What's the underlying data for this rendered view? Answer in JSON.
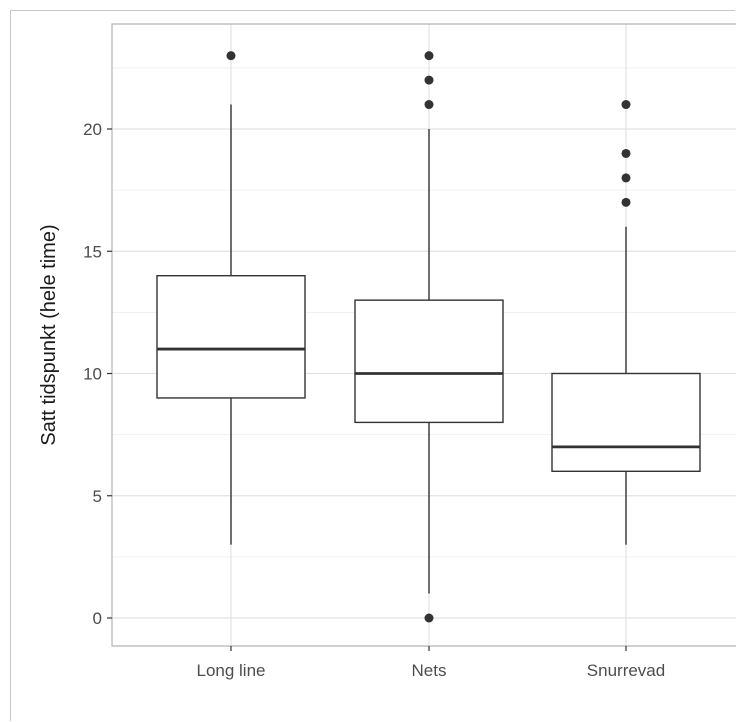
{
  "chart_data": {
    "type": "box",
    "title": "",
    "xlabel": "",
    "ylabel": "Satt tidspunkt (hele time)",
    "ylim": [
      -1,
      24
    ],
    "yticks": [
      0,
      5,
      10,
      15,
      20
    ],
    "grid": true,
    "legend": "none",
    "colors": {
      "box_fill": "#ffffff",
      "box_stroke": "#333333",
      "grid_major": "#e2e2e2",
      "grid_minor": "#f1f1f1",
      "panel_border": "#b3b3b3"
    },
    "categories": [
      "Long line",
      "Nets",
      "Snurrevad"
    ],
    "boxes": [
      {
        "category": "Long line",
        "whisker_low": 3,
        "q1": 9,
        "median": 11,
        "q3": 14,
        "whisker_high": 21,
        "outliers": [
          23
        ]
      },
      {
        "category": "Nets",
        "whisker_low": 1,
        "q1": 8,
        "median": 10,
        "q3": 13,
        "whisker_high": 20,
        "outliers": [
          23,
          22,
          21,
          0
        ]
      },
      {
        "category": "Snurrevad",
        "whisker_low": 3,
        "q1": 6,
        "median": 7,
        "q3": 10,
        "whisker_high": 16,
        "outliers": [
          21,
          19,
          18,
          17
        ]
      }
    ]
  }
}
